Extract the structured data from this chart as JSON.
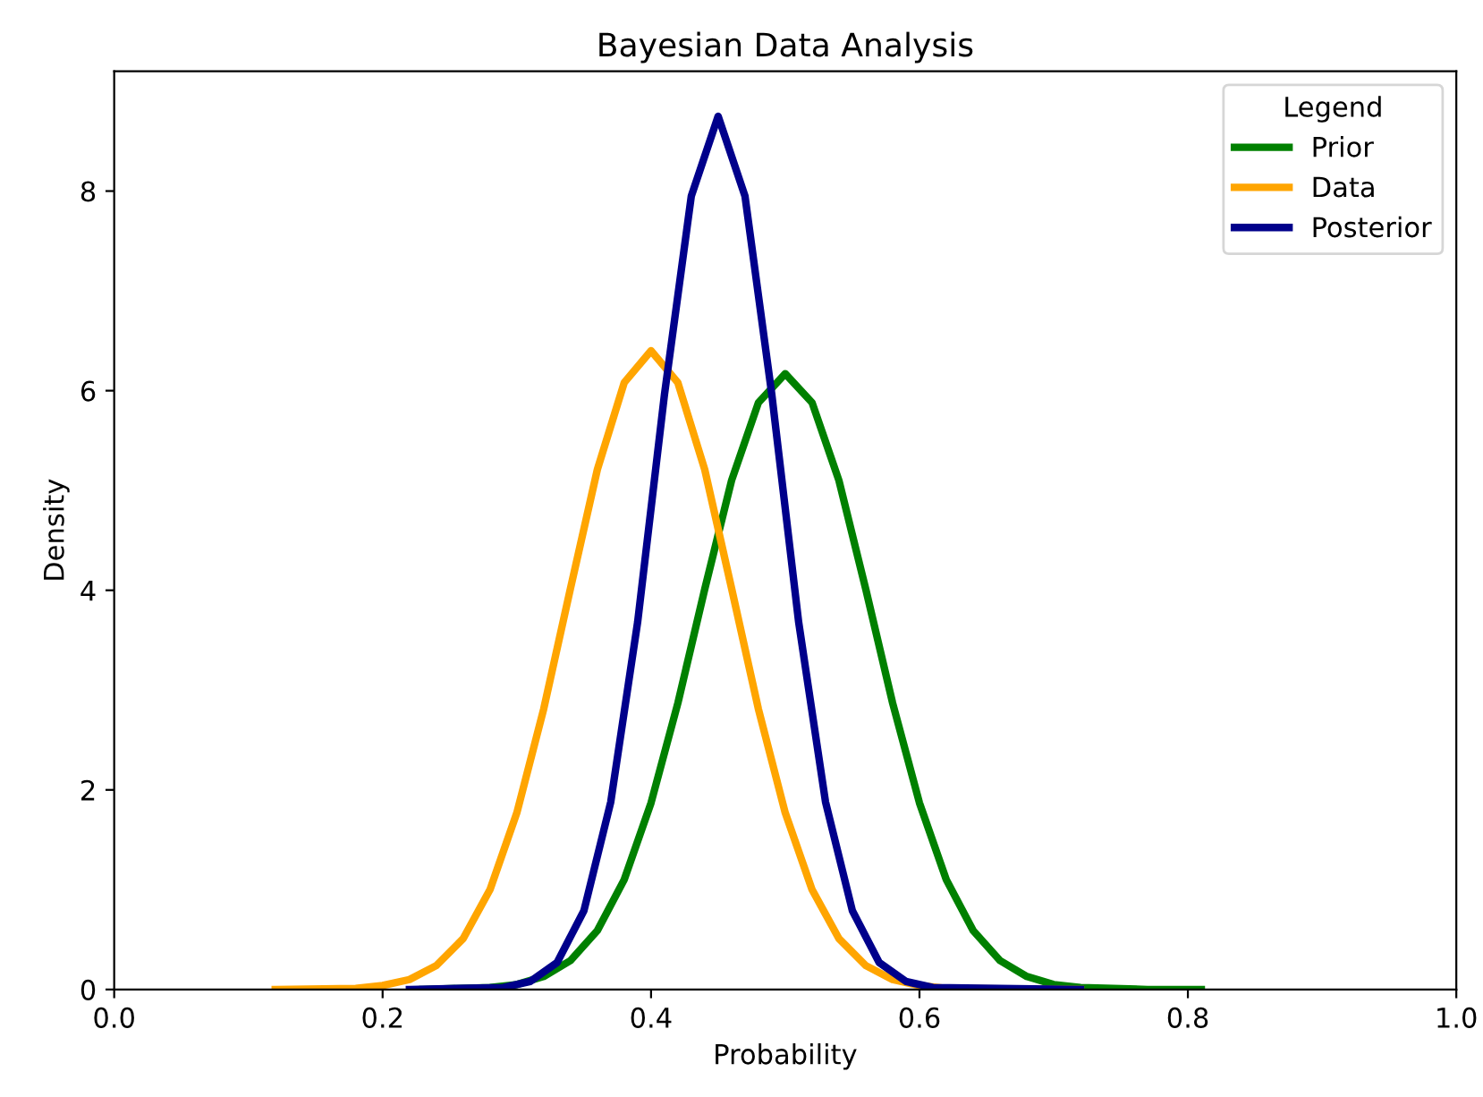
{
  "chart_data": {
    "type": "line",
    "title": "Bayesian Data Analysis",
    "xlabel": "Probability",
    "ylabel": "Density",
    "legend_title": "Legend",
    "legend": "top right",
    "grid": false,
    "marker": "none",
    "line_style": "solid",
    "xlim": [
      0.0,
      1.0
    ],
    "xticks": [
      {
        "value": 0,
        "label": "0.0"
      },
      0.2,
      0.4,
      0.6,
      0.8,
      {
        "value": 1,
        "label": "1.0"
      }
    ],
    "ylim": [
      0,
      9.2
    ],
    "yticks": [
      0,
      2,
      4,
      6,
      8
    ],
    "series": [
      {
        "name": "Prior",
        "color": "#008000",
        "x": [
          0.23,
          0.28,
          0.3,
          0.32,
          0.34,
          0.36,
          0.38,
          0.4,
          0.42,
          0.44,
          0.46,
          0.48,
          0.5,
          0.52,
          0.54,
          0.56,
          0.58,
          0.6,
          0.62,
          0.64,
          0.66,
          0.68,
          0.7,
          0.72,
          0.77,
          0.81
        ],
        "values": [
          0,
          0.02,
          0.05,
          0.13,
          0.29,
          0.59,
          1.1,
          1.87,
          2.87,
          4.01,
          5.1,
          5.88,
          6.17,
          5.88,
          5.1,
          4.01,
          2.87,
          1.87,
          1.1,
          0.59,
          0.29,
          0.13,
          0.05,
          0.02,
          0,
          0
        ]
      },
      {
        "name": "Data",
        "color": "#ffa500",
        "x": [
          0.12,
          0.18,
          0.2,
          0.22,
          0.24,
          0.26,
          0.28,
          0.3,
          0.32,
          0.34,
          0.36,
          0.38,
          0.4,
          0.42,
          0.44,
          0.46,
          0.48,
          0.5,
          0.52,
          0.54,
          0.56,
          0.58,
          0.6,
          0.62,
          0.72
        ],
        "values": [
          0,
          0.01,
          0.04,
          0.1,
          0.24,
          0.51,
          1.0,
          1.77,
          2.81,
          4.02,
          5.21,
          6.08,
          6.4,
          6.08,
          5.21,
          4.02,
          2.81,
          1.77,
          1.0,
          0.51,
          0.24,
          0.1,
          0.04,
          0.01,
          0
        ]
      },
      {
        "name": "Posterior",
        "color": "#00008b",
        "x": [
          0.22,
          0.29,
          0.31,
          0.33,
          0.35,
          0.37,
          0.39,
          0.41,
          0.43,
          0.45,
          0.47,
          0.49,
          0.51,
          0.53,
          0.55,
          0.57,
          0.59,
          0.61,
          0.72
        ],
        "values": [
          0,
          0.02,
          0.08,
          0.27,
          0.79,
          1.88,
          3.68,
          5.96,
          7.95,
          8.75,
          7.95,
          5.96,
          3.68,
          1.88,
          0.79,
          0.27,
          0.08,
          0.02,
          0
        ]
      }
    ]
  }
}
